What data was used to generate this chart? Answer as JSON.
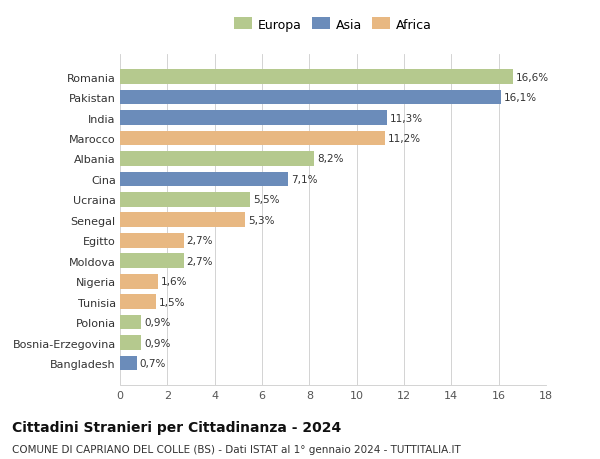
{
  "countries": [
    "Romania",
    "Pakistan",
    "India",
    "Marocco",
    "Albania",
    "Cina",
    "Ucraina",
    "Senegal",
    "Egitto",
    "Moldova",
    "Nigeria",
    "Tunisia",
    "Polonia",
    "Bosnia-Erzegovina",
    "Bangladesh"
  ],
  "values": [
    16.6,
    16.1,
    11.3,
    11.2,
    8.2,
    7.1,
    5.5,
    5.3,
    2.7,
    2.7,
    1.6,
    1.5,
    0.9,
    0.9,
    0.7
  ],
  "labels": [
    "16,6%",
    "16,1%",
    "11,3%",
    "11,2%",
    "8,2%",
    "7,1%",
    "5,5%",
    "5,3%",
    "2,7%",
    "2,7%",
    "1,6%",
    "1,5%",
    "0,9%",
    "0,9%",
    "0,7%"
  ],
  "continents": [
    "Europa",
    "Asia",
    "Asia",
    "Africa",
    "Europa",
    "Asia",
    "Europa",
    "Africa",
    "Africa",
    "Europa",
    "Africa",
    "Africa",
    "Europa",
    "Europa",
    "Asia"
  ],
  "colors": {
    "Europa": "#b5c98e",
    "Asia": "#6b8cba",
    "Africa": "#e8b882"
  },
  "xlim": [
    0,
    18
  ],
  "xticks": [
    0,
    2,
    4,
    6,
    8,
    10,
    12,
    14,
    16,
    18
  ],
  "title": "Cittadini Stranieri per Cittadinanza - 2024",
  "subtitle": "COMUNE DI CAPRIANO DEL COLLE (BS) - Dati ISTAT al 1° gennaio 2024 - TUTTITALIA.IT",
  "bg_color": "#ffffff",
  "grid_color": "#cccccc",
  "bar_height": 0.72,
  "title_fontsize": 10,
  "subtitle_fontsize": 7.5,
  "tick_label_fontsize": 8,
  "value_label_fontsize": 7.5,
  "axis_label_fontsize": 8,
  "legend_fontsize": 9
}
